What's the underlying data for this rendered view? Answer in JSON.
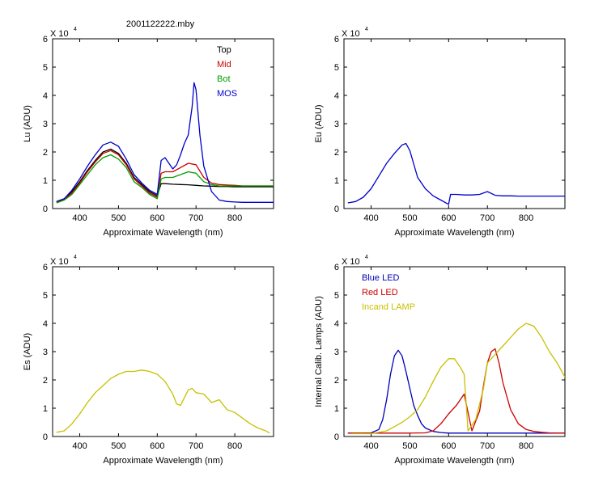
{
  "figure_title": "2001122222.mby",
  "exponent_base": "X 10",
  "exponent_power": "4",
  "colors": {
    "top": "#000000",
    "mid": "#cc0000",
    "bot": "#00a000",
    "mos": "#0000cc",
    "blue_led": "#0000bb",
    "red_led": "#cc0000",
    "lamp": "#c8c000",
    "axes": "#000000"
  },
  "chart_data": [
    {
      "id": "lu",
      "type": "line",
      "title": "2001122222.mby",
      "xlabel": "Approximate Wavelength (nm)",
      "ylabel": "Lu (ADU)",
      "xlim": [
        330,
        900
      ],
      "ylim": [
        0,
        6
      ],
      "y_scale_note": "X 10^4",
      "xticks": [
        400,
        500,
        600,
        700,
        800
      ],
      "yticks": [
        0,
        1,
        2,
        3,
        4,
        5,
        6
      ],
      "legend": [
        {
          "label": "Top",
          "color_key": "top"
        },
        {
          "label": "Mid",
          "color_key": "mid"
        },
        {
          "label": "Bot",
          "color_key": "bot"
        },
        {
          "label": "MOS",
          "color_key": "mos"
        }
      ],
      "series": [
        {
          "name": "Top",
          "color_key": "top",
          "x": [
            340,
            360,
            380,
            400,
            420,
            440,
            460,
            480,
            500,
            520,
            540,
            560,
            580,
            600,
            610,
            620,
            640,
            660,
            680,
            700,
            720,
            740,
            760,
            780,
            800,
            820,
            840,
            860,
            880,
            900
          ],
          "y": [
            0.25,
            0.35,
            0.6,
            0.95,
            1.35,
            1.7,
            2.0,
            2.1,
            1.95,
            1.6,
            1.1,
            0.85,
            0.6,
            0.45,
            0.88,
            0.88,
            0.86,
            0.85,
            0.84,
            0.82,
            0.8,
            0.79,
            0.78,
            0.78,
            0.77,
            0.77,
            0.77,
            0.77,
            0.77,
            0.77
          ]
        },
        {
          "name": "Mid",
          "color_key": "mid",
          "x": [
            340,
            360,
            380,
            400,
            420,
            440,
            460,
            480,
            500,
            520,
            540,
            560,
            580,
            600,
            610,
            620,
            640,
            660,
            680,
            700,
            720,
            740,
            760,
            780,
            800,
            820,
            840,
            860,
            880,
            900
          ],
          "y": [
            0.22,
            0.32,
            0.55,
            0.9,
            1.3,
            1.65,
            1.95,
            2.05,
            1.9,
            1.55,
            1.05,
            0.8,
            0.55,
            0.4,
            1.25,
            1.3,
            1.3,
            1.45,
            1.6,
            1.55,
            1.1,
            0.9,
            0.85,
            0.83,
            0.82,
            0.8,
            0.8,
            0.8,
            0.8,
            0.8
          ]
        },
        {
          "name": "Bot",
          "color_key": "bot",
          "x": [
            340,
            360,
            380,
            400,
            420,
            440,
            460,
            480,
            500,
            520,
            540,
            560,
            580,
            600,
            610,
            620,
            640,
            660,
            680,
            700,
            720,
            740,
            760,
            780,
            800,
            820,
            840,
            860,
            880,
            900
          ],
          "y": [
            0.2,
            0.3,
            0.5,
            0.85,
            1.2,
            1.55,
            1.8,
            1.9,
            1.75,
            1.45,
            0.95,
            0.75,
            0.5,
            0.35,
            1.05,
            1.1,
            1.1,
            1.2,
            1.3,
            1.25,
            0.95,
            0.85,
            0.8,
            0.8,
            0.8,
            0.8,
            0.8,
            0.8,
            0.8,
            0.8
          ]
        },
        {
          "name": "MOS",
          "color_key": "mos",
          "x": [
            340,
            360,
            380,
            400,
            420,
            440,
            460,
            480,
            500,
            520,
            540,
            560,
            580,
            600,
            610,
            620,
            630,
            640,
            650,
            660,
            670,
            680,
            690,
            695,
            700,
            710,
            720,
            740,
            760,
            780,
            800,
            820,
            840,
            860,
            880,
            900
          ],
          "y": [
            0.25,
            0.35,
            0.65,
            1.05,
            1.5,
            1.9,
            2.25,
            2.35,
            2.2,
            1.75,
            1.2,
            0.9,
            0.65,
            0.5,
            1.7,
            1.8,
            1.6,
            1.4,
            1.55,
            1.9,
            2.3,
            2.6,
            3.6,
            4.45,
            4.2,
            2.6,
            1.5,
            0.6,
            0.3,
            0.25,
            0.23,
            0.22,
            0.22,
            0.22,
            0.22,
            0.22
          ]
        }
      ]
    },
    {
      "id": "eu",
      "type": "line",
      "title": "",
      "xlabel": "Approximate Wavelength (nm)",
      "ylabel": "Eu  (ADU)",
      "xlim": [
        330,
        900
      ],
      "ylim": [
        0,
        6
      ],
      "y_scale_note": "X 10^4",
      "xticks": [
        400,
        500,
        600,
        700,
        800
      ],
      "yticks": [
        0,
        1,
        2,
        3,
        4,
        5,
        6
      ],
      "legend": [],
      "series": [
        {
          "name": "Eu",
          "color_key": "mos",
          "x": [
            340,
            360,
            380,
            400,
            420,
            440,
            460,
            480,
            490,
            500,
            520,
            540,
            560,
            580,
            600,
            605,
            620,
            640,
            660,
            680,
            700,
            720,
            740,
            760,
            780,
            800,
            820,
            840,
            860,
            880,
            900
          ],
          "y": [
            0.2,
            0.25,
            0.4,
            0.7,
            1.15,
            1.6,
            1.95,
            2.25,
            2.3,
            2.05,
            1.1,
            0.7,
            0.45,
            0.3,
            0.15,
            0.5,
            0.5,
            0.48,
            0.48,
            0.5,
            0.6,
            0.47,
            0.45,
            0.45,
            0.44,
            0.44,
            0.44,
            0.44,
            0.44,
            0.44,
            0.44
          ]
        }
      ]
    },
    {
      "id": "es",
      "type": "line",
      "title": "",
      "xlabel": "Approximate Wavelength (nm)",
      "ylabel": "Es  (ADU)",
      "xlim": [
        330,
        900
      ],
      "ylim": [
        0,
        6
      ],
      "y_scale_note": "X 10^4",
      "xticks": [
        400,
        500,
        600,
        700,
        800
      ],
      "yticks": [
        0,
        1,
        2,
        3,
        4,
        5,
        6
      ],
      "legend": [],
      "series": [
        {
          "name": "Es",
          "color_key": "lamp",
          "x": [
            340,
            360,
            380,
            400,
            420,
            440,
            460,
            480,
            500,
            520,
            540,
            560,
            580,
            600,
            620,
            640,
            650,
            660,
            680,
            690,
            700,
            720,
            740,
            760,
            780,
            800,
            820,
            840,
            860,
            880,
            890
          ],
          "y": [
            0.15,
            0.2,
            0.45,
            0.8,
            1.2,
            1.55,
            1.8,
            2.05,
            2.2,
            2.3,
            2.3,
            2.35,
            2.3,
            2.2,
            1.95,
            1.5,
            1.15,
            1.1,
            1.65,
            1.7,
            1.55,
            1.5,
            1.2,
            1.3,
            0.95,
            0.85,
            0.65,
            0.45,
            0.3,
            0.2,
            0.12
          ]
        }
      ]
    },
    {
      "id": "lamps",
      "type": "line",
      "title": "",
      "xlabel": "Approximate Wavelength (nm)",
      "ylabel": "Internal Calib. Lamps (ADU)",
      "xlim": [
        330,
        900
      ],
      "ylim": [
        0,
        6
      ],
      "y_scale_note": "X 10^4",
      "xticks": [
        400,
        500,
        600,
        700,
        800
      ],
      "yticks": [
        0,
        1,
        2,
        3,
        4,
        5,
        6
      ],
      "legend": [
        {
          "label": "Blue LED",
          "color_key": "blue_led"
        },
        {
          "label": "Red LED",
          "color_key": "red_led"
        },
        {
          "label": "Incand LAMP",
          "color_key": "lamp"
        }
      ],
      "series": [
        {
          "name": "Blue LED",
          "color_key": "blue_led",
          "x": [
            340,
            380,
            400,
            420,
            430,
            440,
            450,
            460,
            470,
            480,
            490,
            500,
            510,
            520,
            530,
            540,
            560,
            580,
            600,
            650,
            700,
            800,
            900
          ],
          "y": [
            0.12,
            0.12,
            0.13,
            0.25,
            0.6,
            1.3,
            2.2,
            2.85,
            3.05,
            2.85,
            2.3,
            1.7,
            1.1,
            0.75,
            0.45,
            0.3,
            0.18,
            0.14,
            0.12,
            0.12,
            0.12,
            0.12,
            0.12
          ]
        },
        {
          "name": "Red LED",
          "color_key": "red_led",
          "x": [
            340,
            500,
            540,
            560,
            580,
            600,
            620,
            640,
            660,
            680,
            690,
            700,
            710,
            720,
            730,
            740,
            760,
            780,
            800,
            820,
            840,
            860,
            880,
            900
          ],
          "y": [
            0.12,
            0.12,
            0.13,
            0.2,
            0.45,
            0.8,
            1.1,
            1.5,
            0.2,
            0.9,
            1.8,
            2.6,
            3.0,
            3.1,
            2.6,
            1.9,
            0.95,
            0.45,
            0.25,
            0.18,
            0.15,
            0.13,
            0.12,
            0.12
          ]
        },
        {
          "name": "Incand LAMP",
          "color_key": "lamp",
          "x": [
            350,
            400,
            440,
            460,
            480,
            500,
            520,
            540,
            560,
            580,
            600,
            615,
            630,
            640,
            650,
            670,
            690,
            700,
            710,
            720,
            740,
            760,
            780,
            800,
            820,
            840,
            860,
            880,
            900
          ],
          "y": [
            0.1,
            0.1,
            0.2,
            0.35,
            0.5,
            0.7,
            0.95,
            1.4,
            1.95,
            2.45,
            2.75,
            2.75,
            2.45,
            2.2,
            0.2,
            0.6,
            1.7,
            2.6,
            2.75,
            2.9,
            3.2,
            3.5,
            3.8,
            4.0,
            3.9,
            3.5,
            3.0,
            2.6,
            2.1
          ]
        }
      ]
    }
  ]
}
